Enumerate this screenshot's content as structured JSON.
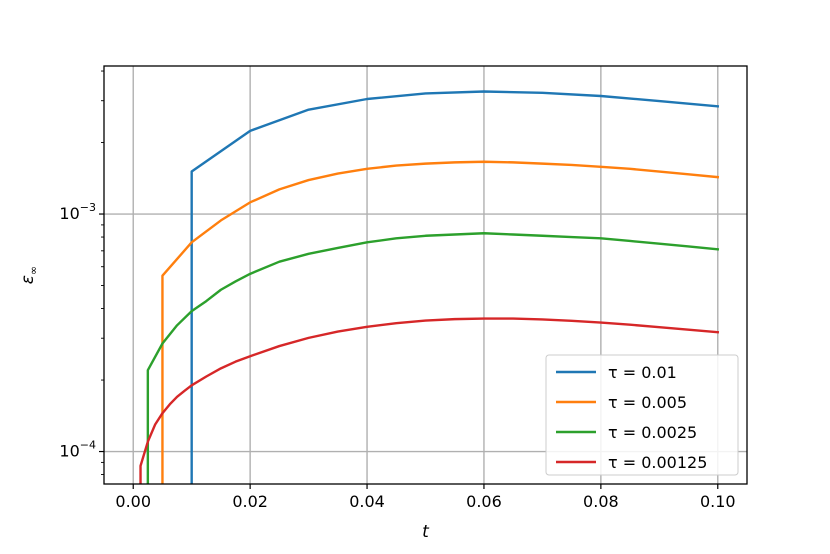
{
  "chart_data": {
    "type": "line",
    "xlabel": "t",
    "ylabel": "ε∞",
    "ylabel_main": "ε",
    "ylabel_sub": "∞",
    "xlim": [
      -0.005,
      0.105
    ],
    "ylim": [
      7.3e-05,
      0.0042
    ],
    "yscale": "log",
    "grid": true,
    "legend_position": "lower-right",
    "x_ticks": [
      {
        "value": 0.0,
        "label": "0.00"
      },
      {
        "value": 0.02,
        "label": "0.02"
      },
      {
        "value": 0.04,
        "label": "0.04"
      },
      {
        "value": 0.06,
        "label": "0.06"
      },
      {
        "value": 0.08,
        "label": "0.08"
      },
      {
        "value": 0.1,
        "label": "0.10"
      }
    ],
    "y_ticks": [
      {
        "value": 0.0001,
        "base": "10",
        "exp": "−4"
      },
      {
        "value": 0.001,
        "base": "10",
        "exp": "−3"
      }
    ],
    "series": [
      {
        "name": "τ = 0.01",
        "color": "#1f77b4",
        "x": [
          0.01,
          0.01,
          0.02,
          0.03,
          0.04,
          0.05,
          0.06,
          0.07,
          0.08,
          0.09,
          0.1
        ],
        "y": [
          7.3e-05,
          0.00151,
          0.00224,
          0.00275,
          0.00305,
          0.00322,
          0.00328,
          0.00324,
          0.00314,
          0.00299,
          0.00284
        ]
      },
      {
        "name": "τ = 0.005",
        "color": "#ff7f0e",
        "x": [
          0.005,
          0.005,
          0.01,
          0.015,
          0.02,
          0.025,
          0.03,
          0.035,
          0.04,
          0.045,
          0.05,
          0.055,
          0.06,
          0.065,
          0.07,
          0.075,
          0.08,
          0.085,
          0.09,
          0.095,
          0.1
        ],
        "y": [
          7.3e-05,
          0.00055,
          0.00076,
          0.00094,
          0.00112,
          0.00127,
          0.00139,
          0.00148,
          0.00155,
          0.0016,
          0.00163,
          0.00165,
          0.00166,
          0.00165,
          0.00163,
          0.00161,
          0.00158,
          0.00155,
          0.00151,
          0.00147,
          0.00143
        ]
      },
      {
        "name": "τ = 0.0025",
        "color": "#2ca02c",
        "x": [
          0.0025,
          0.0025,
          0.005,
          0.0075,
          0.01,
          0.0125,
          0.015,
          0.0175,
          0.02,
          0.025,
          0.03,
          0.035,
          0.04,
          0.045,
          0.05,
          0.055,
          0.06,
          0.065,
          0.07,
          0.075,
          0.08,
          0.085,
          0.09,
          0.095,
          0.1
        ],
        "y": [
          7.3e-05,
          0.00022,
          0.000285,
          0.00034,
          0.00039,
          0.00043,
          0.00048,
          0.00052,
          0.00056,
          0.00063,
          0.00068,
          0.00072,
          0.00076,
          0.00079,
          0.00081,
          0.00082,
          0.00083,
          0.00082,
          0.00081,
          0.0008,
          0.00079,
          0.00077,
          0.00075,
          0.00073,
          0.00071
        ]
      },
      {
        "name": "τ = 0.00125",
        "color": "#d62728",
        "x": [
          0.00125,
          0.00125,
          0.0025,
          0.00375,
          0.005,
          0.00625,
          0.0075,
          0.00875,
          0.01,
          0.0125,
          0.015,
          0.0175,
          0.02,
          0.025,
          0.03,
          0.035,
          0.04,
          0.045,
          0.05,
          0.055,
          0.06,
          0.065,
          0.07,
          0.075,
          0.08,
          0.085,
          0.09,
          0.095,
          0.1
        ],
        "y": [
          7.3e-05,
          8.7e-05,
          0.00011,
          0.00013,
          0.000145,
          0.000158,
          0.00017,
          0.00018,
          0.00019,
          0.000207,
          0.000224,
          0.000239,
          0.000252,
          0.000278,
          0.000301,
          0.00032,
          0.000335,
          0.000347,
          0.000356,
          0.000361,
          0.000363,
          0.000363,
          0.00036,
          0.000355,
          0.000349,
          0.000342,
          0.000334,
          0.000326,
          0.000318
        ]
      }
    ]
  }
}
